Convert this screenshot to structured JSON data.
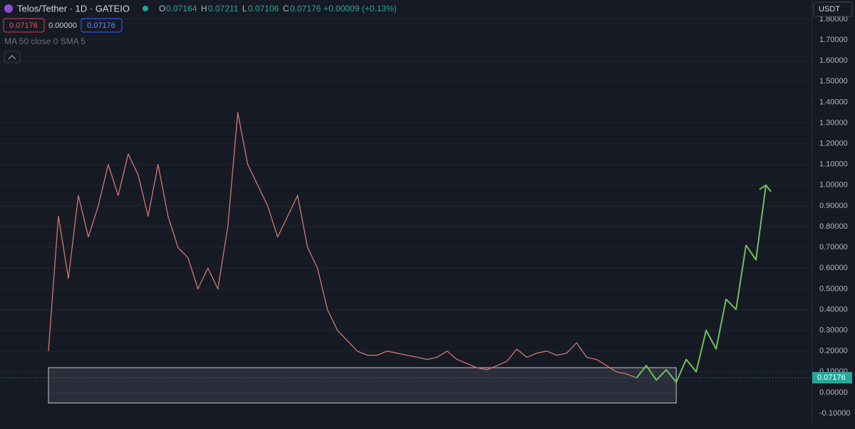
{
  "header": {
    "symbol": "Telos/Tether · 1D · GATEIO",
    "o_label": "O",
    "o": "0.07164",
    "h_label": "H",
    "h": "0.07211",
    "l_label": "L",
    "l": "0.07106",
    "c_label": "C",
    "c": "0.07176",
    "change": "+0.00009 (+0.13%)",
    "sell": "0.07176",
    "spread": "0.00000",
    "buy": "0.07176",
    "indicator": "MA 50 close 0 SMA 5",
    "currency": "USDT",
    "last_price": "0.07176"
  },
  "chart_data": {
    "type": "line",
    "ylim": [
      -0.1,
      1.8
    ],
    "yticks": [
      {
        "value": -0.1,
        "label": "-0.10000"
      },
      {
        "value": 0,
        "label": "0.00000"
      },
      {
        "value": 0.1,
        "label": "0.10000"
      },
      {
        "value": 0.2,
        "label": "0.20000"
      },
      {
        "value": 0.3,
        "label": "0.30000"
      },
      {
        "value": 0.4,
        "label": "0.40000"
      },
      {
        "value": 0.5,
        "label": "0.50000"
      },
      {
        "value": 0.6,
        "label": "0.60000"
      },
      {
        "value": 0.7,
        "label": "0.70000"
      },
      {
        "value": 0.8,
        "label": "0.80000"
      },
      {
        "value": 0.9,
        "label": "0.90000"
      },
      {
        "value": 1.0,
        "label": "1.00000"
      },
      {
        "value": 1.1,
        "label": "1.10000"
      },
      {
        "value": 1.2,
        "label": "1.20000"
      },
      {
        "value": 1.3,
        "label": "1.30000"
      },
      {
        "value": 1.4,
        "label": "1.40000"
      },
      {
        "value": 1.5,
        "label": "1.50000"
      },
      {
        "value": 1.6,
        "label": "1.60000"
      },
      {
        "value": 1.7,
        "label": "1.70000"
      },
      {
        "value": 1.8,
        "label": "1.80000"
      }
    ],
    "grid": true,
    "last_value": 0.07176,
    "zone_range": [
      0.12,
      -0.05
    ],
    "series": [
      {
        "color": "#d1776b",
        "values": [
          0.2,
          0.85,
          0.55,
          0.95,
          0.75,
          0.9,
          1.1,
          0.95,
          1.15,
          1.05,
          0.85,
          1.1,
          0.85,
          0.7,
          0.65,
          0.5,
          0.6,
          0.5,
          0.8,
          1.35,
          1.1,
          1.0,
          0.9,
          0.75,
          0.85,
          0.95,
          0.7,
          0.6,
          0.4,
          0.3,
          0.25,
          0.2,
          0.18,
          0.18,
          0.2,
          0.19,
          0.18,
          0.17,
          0.16,
          0.17,
          0.2,
          0.16,
          0.14,
          0.12,
          0.11,
          0.13,
          0.15,
          0.21,
          0.17,
          0.19,
          0.2,
          0.18,
          0.19,
          0.24,
          0.17,
          0.16,
          0.13,
          0.1,
          0.09,
          0.07176,
          null,
          null,
          null,
          null,
          null,
          null,
          null,
          null,
          null,
          null,
          null,
          null,
          null
        ]
      },
      {
        "color": "#6fbf5b",
        "values": [
          null,
          null,
          null,
          null,
          null,
          null,
          null,
          null,
          null,
          null,
          null,
          null,
          null,
          null,
          null,
          null,
          null,
          null,
          null,
          null,
          null,
          null,
          null,
          null,
          null,
          null,
          null,
          null,
          null,
          null,
          null,
          null,
          null,
          null,
          null,
          null,
          null,
          null,
          null,
          null,
          null,
          null,
          null,
          null,
          null,
          null,
          null,
          null,
          null,
          null,
          null,
          null,
          null,
          null,
          null,
          null,
          null,
          null,
          null,
          0.07,
          0.13,
          0.06,
          0.11,
          0.05,
          0.16,
          0.1,
          0.3,
          0.21,
          0.45,
          0.4,
          0.71,
          0.64,
          1.0
        ]
      }
    ]
  }
}
